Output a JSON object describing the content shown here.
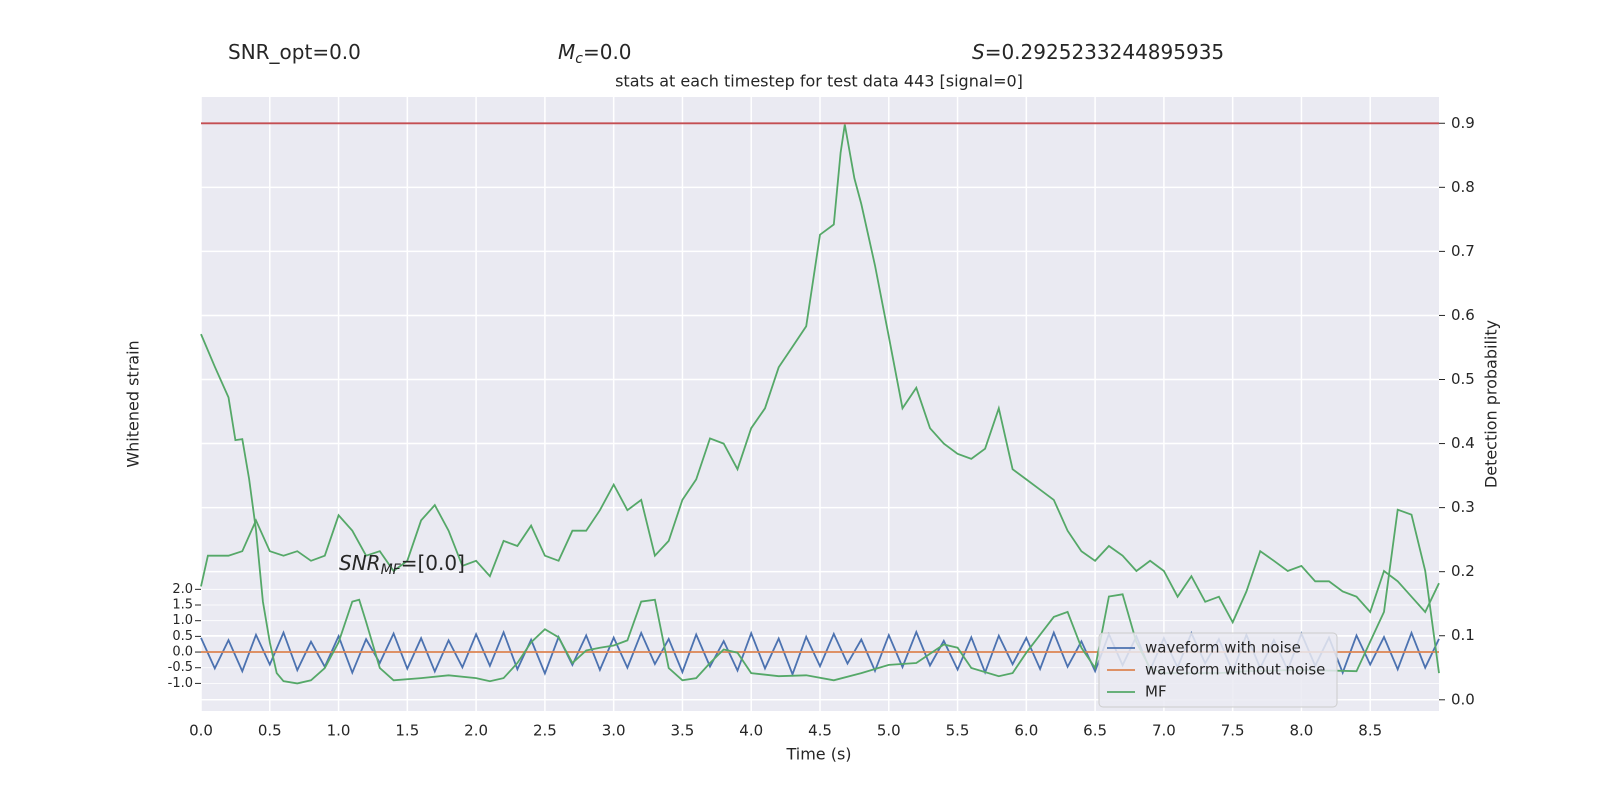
{
  "chart_data": {
    "type": "line",
    "title": "stats at each timestep for test data 443 [signal=0]",
    "annotations": [
      {
        "text": "SNR_opt=0.0"
      },
      {
        "base": "M",
        "sub": "c",
        "rest": "=0.0"
      },
      {
        "base": "S",
        "rest": "=0.2925233244895935"
      },
      {
        "base": "SNR",
        "sub": "MF",
        "rest": "=[0.0]"
      }
    ],
    "xlabel": "Time (s)",
    "ylabel": "Whitened strain",
    "y2label": "Detection probability",
    "xlim": [
      0,
      9.0
    ],
    "xticks": [
      {
        "value": 0,
        "label": "0.0"
      },
      0.5,
      {
        "value": 1,
        "label": "1.0"
      },
      1.5,
      {
        "value": 2,
        "label": "2.0"
      },
      2.5,
      {
        "value": 3,
        "label": "3.0"
      },
      3.5,
      {
        "value": 4,
        "label": "4.0"
      },
      4.5,
      {
        "value": 5,
        "label": "5.0"
      },
      5.5,
      {
        "value": 6,
        "label": "6.0"
      },
      6.5,
      {
        "value": 7,
        "label": "7.0"
      },
      7.5,
      {
        "value": 8,
        "label": "8.0"
      },
      8.5
    ],
    "ylim": [
      -1.88,
      17.7
    ],
    "yticks": [
      {
        "value": -1,
        "label": "-1.0"
      },
      -0.5,
      {
        "value": 0,
        "label": "0.0"
      },
      0.5,
      {
        "value": 1,
        "label": "1.0"
      },
      1.5,
      {
        "value": 2,
        "label": "2.0"
      }
    ],
    "y2lim": [
      -0.0175,
      0.941
    ],
    "y2ticks": [
      {
        "value": 0,
        "label": "0.0"
      },
      0.1,
      0.2,
      0.3,
      0.4,
      0.5,
      0.6,
      0.7,
      0.8,
      0.9
    ],
    "grid": true,
    "legend": "lower right",
    "series": [
      {
        "name": "waveform with noise",
        "color": "#4c72b0",
        "axis": "y",
        "x": [
          0.0,
          0.1,
          0.2,
          0.3,
          0.4,
          0.5,
          0.6,
          0.7,
          0.8,
          0.9,
          1.0,
          1.1,
          1.2,
          1.3,
          1.4,
          1.5,
          1.6,
          1.7,
          1.8,
          1.9,
          2.0,
          2.1,
          2.2,
          2.3,
          2.4,
          2.5,
          2.6,
          2.7,
          2.8,
          2.9,
          3.0,
          3.1,
          3.2,
          3.3,
          3.4,
          3.5,
          3.6,
          3.7,
          3.8,
          3.9,
          4.0,
          4.1,
          4.2,
          4.3,
          4.4,
          4.5,
          4.6,
          4.7,
          4.8,
          4.9,
          5.0,
          5.1,
          5.2,
          5.3,
          5.4,
          5.5,
          5.6,
          5.7,
          5.8,
          5.9,
          6.0,
          6.1,
          6.2,
          6.3,
          6.4,
          6.5,
          6.6,
          6.7,
          6.8,
          6.9,
          7.0,
          7.1,
          7.2,
          7.3,
          7.4,
          7.5,
          7.6,
          7.7,
          7.8,
          7.9,
          8.0,
          8.1,
          8.2,
          8.3,
          8.4,
          8.5,
          8.6,
          8.7,
          8.8,
          8.9,
          9.0
        ],
        "values": [
          0.45,
          -0.52,
          0.38,
          -0.61,
          0.55,
          -0.4,
          0.62,
          -0.58,
          0.33,
          -0.47,
          0.51,
          -0.66,
          0.41,
          -0.35,
          0.59,
          -0.53,
          0.44,
          -0.62,
          0.37,
          -0.49,
          0.57,
          -0.44,
          0.63,
          -0.55,
          0.39,
          -0.68,
          0.48,
          -0.41,
          0.53,
          -0.57,
          0.46,
          -0.5,
          0.61,
          -0.38,
          0.42,
          -0.64,
          0.56,
          -0.46,
          0.35,
          -0.59,
          0.6,
          -0.52,
          0.43,
          -0.71,
          0.49,
          -0.45,
          0.58,
          -0.37,
          0.4,
          -0.6,
          0.54,
          -0.48,
          0.64,
          -0.43,
          0.36,
          -0.56,
          0.47,
          -0.65,
          0.52,
          -0.39,
          0.45,
          -0.54,
          0.62,
          -0.47,
          0.34,
          -0.61,
          0.57,
          -0.42,
          0.5,
          -0.58,
          0.44,
          -0.49,
          0.6,
          -0.36,
          0.41,
          -0.63,
          0.55,
          -0.51,
          0.38,
          -0.57,
          0.59,
          -0.44,
          0.46,
          -0.66,
          0.53,
          -0.4,
          0.48,
          -0.55,
          0.61,
          -0.5,
          0.42
        ]
      },
      {
        "name": "waveform without noise",
        "color": "#dd8452",
        "axis": "y",
        "x": [
          0.0,
          9.0
        ],
        "values": [
          0,
          0
        ]
      },
      {
        "name": "MF",
        "color": "#55a868",
        "axis": "y",
        "x": [
          0.0,
          0.1,
          0.2,
          0.25,
          0.3,
          0.35,
          0.4,
          0.45,
          0.5,
          0.55,
          0.6,
          0.7,
          0.8,
          0.9,
          1.0,
          1.1,
          1.15,
          1.2,
          1.3,
          1.4,
          1.6,
          1.8,
          2.0,
          2.1,
          2.2,
          2.3,
          2.4,
          2.5,
          2.6,
          2.7,
          2.8,
          2.9,
          3.0,
          3.1,
          3.2,
          3.3,
          3.4,
          3.5,
          3.6,
          3.7,
          3.8,
          3.9,
          4.0,
          4.2,
          4.4,
          4.6,
          4.8,
          5.0,
          5.2,
          5.4,
          5.5,
          5.6,
          5.8,
          5.9,
          6.0,
          6.2,
          6.3,
          6.4,
          6.5,
          6.6,
          6.7,
          6.8,
          6.9,
          7.0,
          7.4,
          7.6,
          8.0,
          8.4,
          8.6,
          8.7,
          8.8,
          8.9,
          9.0
        ],
        "values": [
          10.14,
          9.1,
          8.12,
          6.76,
          6.79,
          5.52,
          3.89,
          1.61,
          0.31,
          -0.67,
          -0.93,
          -1.0,
          -0.9,
          -0.51,
          0.31,
          1.61,
          1.67,
          0.96,
          -0.51,
          -0.9,
          -0.83,
          -0.74,
          -0.83,
          -0.93,
          -0.83,
          -0.35,
          0.31,
          0.73,
          0.47,
          -0.35,
          0.05,
          0.14,
          0.21,
          0.37,
          1.61,
          1.67,
          -0.51,
          -0.9,
          -0.83,
          -0.35,
          0.08,
          -0.02,
          -0.67,
          -0.77,
          -0.74,
          -0.9,
          -0.67,
          -0.41,
          -0.35,
          0.24,
          0.14,
          -0.51,
          -0.77,
          -0.67,
          -0.02,
          1.12,
          1.28,
          0.14,
          -0.51,
          1.77,
          1.84,
          0.31,
          -0.51,
          -0.67,
          -0.67,
          -0.61,
          -0.57,
          -0.61,
          1.28,
          4.54,
          4.38,
          2.59,
          -0.67
        ]
      },
      {
        "color": "#55a868",
        "axis": "y2",
        "x": [
          0.0,
          0.05,
          0.2,
          0.3,
          0.4,
          0.5,
          0.6,
          0.7,
          0.8,
          0.9,
          1.0,
          1.1,
          1.2,
          1.3,
          1.4,
          1.5,
          1.6,
          1.7,
          1.8,
          1.9,
          2.0,
          2.1,
          2.2,
          2.3,
          2.4,
          2.5,
          2.6,
          2.7,
          2.8,
          2.9,
          3.0,
          3.1,
          3.2,
          3.3,
          3.4,
          3.5,
          3.6,
          3.7,
          3.8,
          3.9,
          4.0,
          4.1,
          4.2,
          4.3,
          4.4,
          4.5,
          4.6,
          4.65,
          4.68,
          4.75,
          4.8,
          4.9,
          5.0,
          5.1,
          5.2,
          5.3,
          5.4,
          5.5,
          5.6,
          5.7,
          5.8,
          5.9,
          6.0,
          6.1,
          6.2,
          6.3,
          6.4,
          6.5,
          6.6,
          6.7,
          6.8,
          6.9,
          7.0,
          7.1,
          7.2,
          7.3,
          7.4,
          7.5,
          7.6,
          7.7,
          7.8,
          7.9,
          8.0,
          8.1,
          8.2,
          8.3,
          8.4,
          8.5,
          8.6,
          8.7,
          8.8,
          8.9,
          9.0
        ],
        "values": [
          0.177,
          0.225,
          0.225,
          0.232,
          0.28,
          0.232,
          0.225,
          0.232,
          0.217,
          0.225,
          0.288,
          0.264,
          0.225,
          0.232,
          0.201,
          0.217,
          0.28,
          0.304,
          0.264,
          0.209,
          0.217,
          0.193,
          0.248,
          0.24,
          0.272,
          0.225,
          0.217,
          0.264,
          0.264,
          0.296,
          0.336,
          0.296,
          0.312,
          0.225,
          0.248,
          0.312,
          0.344,
          0.408,
          0.4,
          0.36,
          0.424,
          0.455,
          0.519,
          0.551,
          0.583,
          0.726,
          0.742,
          0.854,
          0.898,
          0.814,
          0.774,
          0.678,
          0.567,
          0.455,
          0.487,
          0.424,
          0.4,
          0.384,
          0.376,
          0.392,
          0.455,
          0.36,
          0.344,
          0.328,
          0.312,
          0.264,
          0.232,
          0.217,
          0.24,
          0.225,
          0.201,
          0.217,
          0.201,
          0.161,
          0.193,
          0.153,
          0.161,
          0.121,
          0.169,
          0.232,
          0.217,
          0.201,
          0.209,
          0.185,
          0.185,
          0.169,
          0.161,
          0.137,
          0.201,
          0.185,
          0.161,
          0.137,
          0.182
        ]
      },
      {
        "color": "#c44e52",
        "axis": "y2",
        "x": [
          0.0,
          9.0
        ],
        "values": [
          0.9,
          0.9
        ]
      }
    ]
  }
}
